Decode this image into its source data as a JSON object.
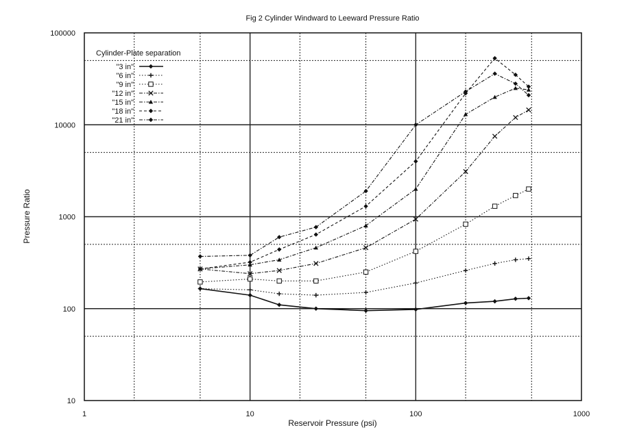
{
  "chart_data": {
    "type": "line",
    "title": "Fig 2  Cylinder Windward to Leeward Pressure Ratio",
    "xlabel": "Reservoir Pressure (psi)",
    "ylabel": "Pressure Ratio",
    "xscale": "log",
    "yscale": "log",
    "xlim": [
      1,
      1000
    ],
    "ylim": [
      10,
      100000
    ],
    "x_ticks": [
      1,
      10,
      100,
      1000
    ],
    "x_tick_labels": [
      "1",
      "10",
      "100",
      "1000"
    ],
    "y_ticks": [
      10,
      100,
      1000,
      10000,
      100000
    ],
    "y_tick_labels": [
      "10",
      "100",
      "1000",
      "10000",
      "100000"
    ],
    "grid": true,
    "legend_title": "Cylinder-Plate separation",
    "legend_position": "top-left",
    "colors": {
      "ink": "#111111",
      "grid": "#222222"
    },
    "series": [
      {
        "name": "\"3 in\"",
        "marker": "diamond",
        "dash": "solid",
        "x": [
          5,
          10,
          15,
          25,
          50,
          100,
          200,
          300,
          400,
          480
        ],
        "y": [
          165,
          140,
          110,
          100,
          95,
          98,
          115,
          120,
          128,
          130
        ]
      },
      {
        "name": "\"6 in\"",
        "marker": "plus",
        "dash": "dotted",
        "x": [
          5,
          10,
          15,
          25,
          50,
          100,
          200,
          300,
          400,
          480
        ],
        "y": [
          165,
          160,
          145,
          140,
          150,
          190,
          260,
          310,
          340,
          350
        ]
      },
      {
        "name": "\"9 in\"",
        "marker": "square",
        "dash": "dotted",
        "x": [
          5,
          10,
          15,
          25,
          50,
          100,
          200,
          300,
          400,
          480
        ],
        "y": [
          195,
          210,
          200,
          200,
          250,
          420,
          830,
          1300,
          1700,
          2000
        ]
      },
      {
        "name": "\"12 in\"",
        "marker": "x",
        "dash": "dashdot",
        "x": [
          5,
          10,
          15,
          25,
          50,
          100,
          200,
          300,
          400,
          480
        ],
        "y": [
          270,
          240,
          260,
          310,
          460,
          940,
          3100,
          7500,
          12000,
          14500
        ]
      },
      {
        "name": "\"15 in\"",
        "marker": "triangle",
        "dash": "dashdot",
        "x": [
          5,
          10,
          15,
          25,
          50,
          100,
          200,
          300,
          400,
          480
        ],
        "y": [
          270,
          300,
          340,
          460,
          800,
          2000,
          13000,
          20000,
          25000,
          24000
        ]
      },
      {
        "name": "\"18 in\"",
        "marker": "diamond",
        "dash": "dashed",
        "x": [
          5,
          10,
          15,
          25,
          50,
          100,
          200,
          300,
          400,
          480
        ],
        "y": [
          270,
          320,
          440,
          640,
          1300,
          4000,
          22000,
          53000,
          35000,
          26000
        ]
      },
      {
        "name": "\"21 in\"",
        "marker": "diamond",
        "dash": "dashdot",
        "x": [
          5,
          10,
          15,
          25,
          50,
          100,
          200,
          300,
          400,
          480
        ],
        "y": [
          370,
          380,
          600,
          770,
          1900,
          10000,
          23000,
          36000,
          28000,
          21000
        ]
      }
    ]
  }
}
